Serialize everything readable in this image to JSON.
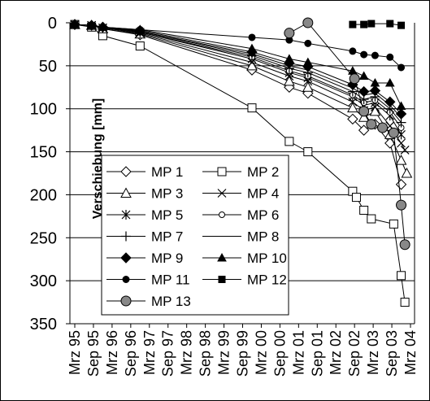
{
  "chart_data": {
    "type": "line",
    "title": "",
    "xlabel": "",
    "ylabel": "Verschiebung [mm]",
    "ylim": [
      0,
      350
    ],
    "y_inverted": true,
    "y_ticks": [
      0,
      50,
      100,
      150,
      200,
      250,
      300,
      350
    ],
    "y_tick_labels": [
      "0",
      "50",
      "100",
      "150",
      "200",
      "250",
      "300",
      "350"
    ],
    "x_axis": {
      "start": 1995.25,
      "end": 2004.25,
      "tick_labels": [
        "Mrz 95",
        "Sep 95",
        "Mrz 96",
        "Sep 96",
        "Mrz 97",
        "Sep 97",
        "Mrz 98",
        "Sep 98",
        "Mrz 99",
        "Sep 99",
        "Mrz 00",
        "Sep 00",
        "Mrz 01",
        "Sep 01",
        "Mrz 02",
        "Sep 02",
        "Mrz 03",
        "Sep 03",
        "Mrz 04"
      ]
    },
    "grid": "horizontal",
    "legend": "center-left",
    "series": [
      {
        "name": "MP 1",
        "marker": "diamond-open",
        "x": [
          1995.25,
          1995.7,
          1996.0,
          1997.0,
          2000.0,
          2001.0,
          2001.5,
          2002.7,
          2003.0,
          2003.3,
          2003.7,
          2004.0
        ],
        "y": [
          2,
          3,
          7,
          14,
          55,
          75,
          82,
          112,
          125,
          118,
          140,
          188
        ]
      },
      {
        "name": "MP 2",
        "marker": "square-open",
        "x": [
          1995.25,
          1995.7,
          1996.0,
          1997.0,
          2000.0,
          2001.0,
          2001.5,
          2002.7,
          2002.8,
          2003.0,
          2003.2,
          2003.8,
          2004.0,
          2004.1
        ],
        "y": [
          2,
          5,
          15,
          27,
          99,
          138,
          150,
          196,
          203,
          218,
          228,
          234,
          294,
          325
        ]
      },
      {
        "name": "MP 3",
        "marker": "triangle-open",
        "x": [
          1995.25,
          1995.7,
          1996.0,
          1997.0,
          2000.0,
          2001.0,
          2001.5,
          2002.7,
          2003.0,
          2003.3,
          2003.7,
          2004.0,
          2004.15
        ],
        "y": [
          2,
          3,
          7,
          13,
          50,
          68,
          75,
          99,
          110,
          103,
          130,
          160,
          175
        ]
      },
      {
        "name": "MP 4",
        "marker": "x",
        "x": [
          1995.25,
          1995.7,
          1996.0,
          1997.0,
          2000.0,
          2001.0,
          2001.5,
          2002.7,
          2003.0,
          2003.3,
          2003.7,
          2004.0,
          2004.1
        ],
        "y": [
          2,
          3,
          6,
          12,
          46,
          62,
          68,
          92,
          102,
          98,
          120,
          140,
          148
        ]
      },
      {
        "name": "MP 5",
        "marker": "star",
        "x": [
          1995.25,
          1995.7,
          1996.0,
          1997.0,
          2000.0,
          2001.0,
          2001.5,
          2002.7,
          2003.0,
          2003.3,
          2003.7,
          2004.0
        ],
        "y": [
          2,
          3,
          6,
          11,
          42,
          58,
          64,
          86,
          96,
          93,
          108,
          130
        ]
      },
      {
        "name": "MP 6",
        "marker": "circle-open",
        "x": [
          1995.25,
          1995.7,
          1996.0,
          1997.0,
          2000.0,
          2001.0,
          2001.5,
          2002.7,
          2003.0,
          2003.3,
          2003.7,
          2004.0
        ],
        "y": [
          2,
          3,
          6,
          11,
          40,
          56,
          62,
          84,
          93,
          90,
          104,
          122
        ]
      },
      {
        "name": "MP 7",
        "marker": "plus",
        "x": [
          1995.25,
          1995.7,
          1996.0,
          1997.0,
          2000.0,
          2001.0,
          2001.5,
          2002.7,
          2003.0,
          2003.3,
          2003.7,
          2004.0
        ],
        "y": [
          2,
          3,
          5,
          10,
          38,
          53,
          58,
          80,
          89,
          86,
          100,
          116
        ]
      },
      {
        "name": "MP 8",
        "marker": "none",
        "x": [
          1995.25,
          1995.7,
          1996.0,
          1997.0,
          2000.0,
          2001.0,
          2001.5,
          2002.7,
          2003.0,
          2003.3,
          2003.7,
          2004.0
        ],
        "y": [
          2,
          3,
          5,
          10,
          36,
          50,
          55,
          76,
          84,
          82,
          96,
          110
        ]
      },
      {
        "name": "MP 9",
        "marker": "diamond-filled",
        "x": [
          1995.25,
          1995.7,
          1996.0,
          1997.0,
          2000.0,
          2001.0,
          2001.5,
          2002.7,
          2003.0,
          2003.3,
          2003.7,
          2004.0
        ],
        "y": [
          2,
          3,
          5,
          9,
          34,
          47,
          51,
          72,
          80,
          79,
          92,
          106
        ]
      },
      {
        "name": "MP 10",
        "marker": "triangle-filled",
        "x": [
          1995.25,
          1995.7,
          1996.0,
          1997.0,
          2000.0,
          2001.0,
          2001.5,
          2002.7,
          2003.0,
          2003.3,
          2003.7,
          2004.0
        ],
        "y": [
          2,
          3,
          5,
          8,
          30,
          42,
          46,
          56,
          62,
          70,
          70,
          97
        ]
      },
      {
        "name": "MP 11",
        "marker": "circle-filled",
        "x": [
          1995.25,
          1995.7,
          1996.0,
          1997.0,
          2000.0,
          2001.0,
          2001.5,
          2002.7,
          2003.0,
          2003.3,
          2003.7,
          2004.0
        ],
        "y": [
          2,
          3,
          5,
          8,
          17,
          20,
          24,
          33,
          37,
          38,
          40,
          52
        ]
      },
      {
        "name": "MP 12",
        "marker": "square-filled",
        "x": [
          2002.7,
          2003.0,
          2003.2,
          2003.7,
          2004.0
        ],
        "y": [
          2,
          2,
          1,
          1,
          3
        ]
      },
      {
        "name": "MP 13",
        "marker": "circle-gray",
        "x": [
          2001.0,
          2001.5,
          2002.75,
          2003.0,
          2003.2,
          2003.5,
          2003.8,
          2004.0,
          2004.1
        ],
        "y": [
          12,
          0,
          65,
          103,
          118,
          122,
          128,
          212,
          258
        ]
      }
    ]
  }
}
